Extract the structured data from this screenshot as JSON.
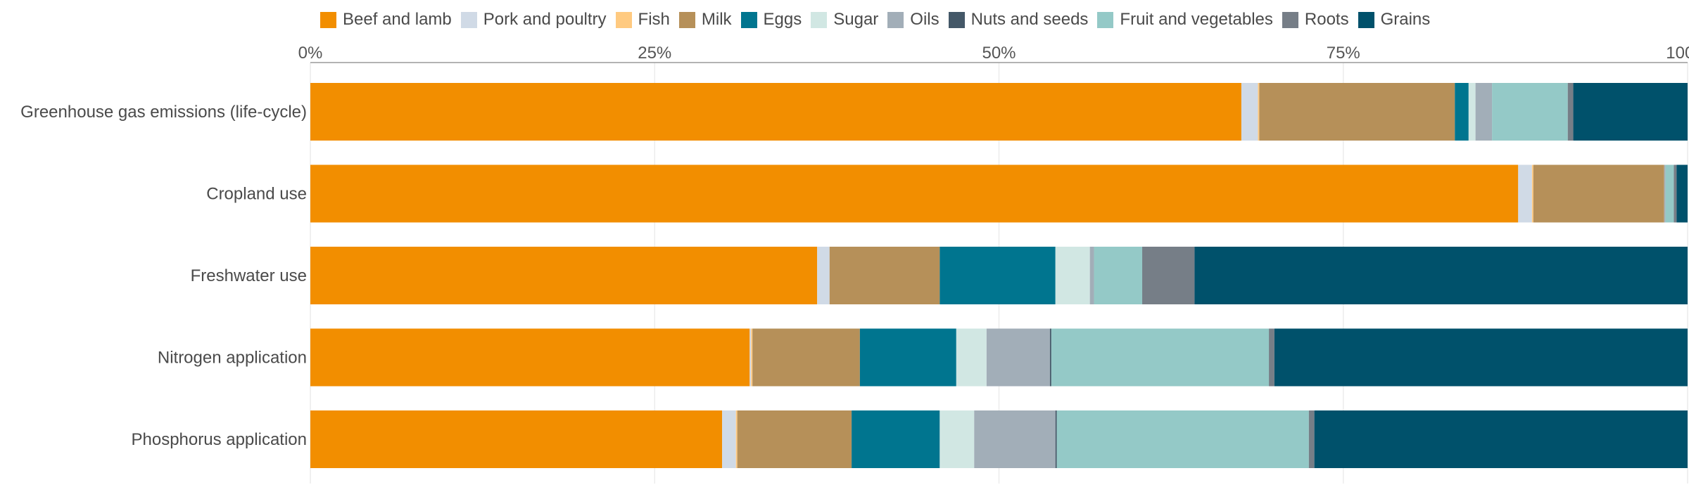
{
  "chart_data": {
    "type": "bar",
    "orientation": "horizontal",
    "stacked": true,
    "normalized_percent": true,
    "legend_position": "top",
    "grid": true,
    "xlim": [
      0,
      100
    ],
    "x_ticks": [
      "0%",
      "25%",
      "50%",
      "75%",
      "100%"
    ],
    "categories": [
      "Greenhouse gas emissions (life-cycle)",
      "Cropland use",
      "Freshwater use",
      "Nitrogen application",
      "Phosphorus application"
    ],
    "series": [
      {
        "name": "Beef and lamb",
        "color": "#F28E00",
        "values": [
          67.6,
          87.7,
          36.8,
          31.9,
          29.9
        ]
      },
      {
        "name": "Pork and poultry",
        "color": "#D0DAE6",
        "values": [
          1.2,
          1.0,
          0.9,
          0.1,
          1.0
        ]
      },
      {
        "name": "Fish",
        "color": "#FFCA80",
        "values": [
          0.1,
          0.1,
          0.0,
          0.1,
          0.1
        ]
      },
      {
        "name": "Milk",
        "color": "#B69059",
        "values": [
          14.2,
          9.5,
          8.0,
          7.8,
          8.3
        ]
      },
      {
        "name": "Eggs",
        "color": "#00758F",
        "values": [
          1.0,
          0.0,
          8.4,
          7.0,
          6.4
        ]
      },
      {
        "name": "Sugar",
        "color": "#D1E7E3",
        "values": [
          0.5,
          0.0,
          2.5,
          2.2,
          2.5
        ]
      },
      {
        "name": "Oils",
        "color": "#A2AEB8",
        "values": [
          1.2,
          0.1,
          0.3,
          4.6,
          5.9
        ]
      },
      {
        "name": "Nuts and seeds",
        "color": "#445868",
        "values": [
          0.0,
          0.0,
          0.0,
          0.1,
          0.1
        ]
      },
      {
        "name": "Fruit and vegetables",
        "color": "#94C9C7",
        "values": [
          5.5,
          0.6,
          3.5,
          15.8,
          18.3
        ]
      },
      {
        "name": "Roots",
        "color": "#767E87",
        "values": [
          0.4,
          0.2,
          3.8,
          0.4,
          0.4
        ]
      },
      {
        "name": "Grains",
        "color": "#00516B",
        "values": [
          8.3,
          0.8,
          35.8,
          30.0,
          27.1
        ]
      }
    ]
  }
}
